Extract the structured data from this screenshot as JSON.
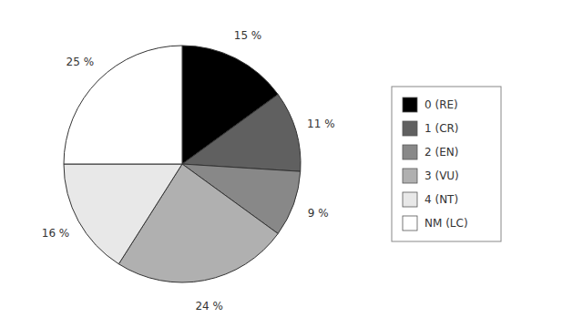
{
  "chart_data": {
    "type": "pie",
    "categories": [
      "0 (RE)",
      "1 (CR)",
      "2 (EN)",
      "3 (VU)",
      "4 (NT)",
      "NM (LC)"
    ],
    "values": [
      15,
      11,
      9,
      24,
      16,
      25
    ],
    "value_labels": [
      "15 %",
      "11 %",
      "9 %",
      "24 %",
      "16 %",
      "25 %"
    ],
    "colors": [
      "#000000",
      "#606060",
      "#888888",
      "#b0b0b0",
      "#e8e8e8",
      "#ffffff"
    ],
    "data_labels": true,
    "legend": "right"
  }
}
